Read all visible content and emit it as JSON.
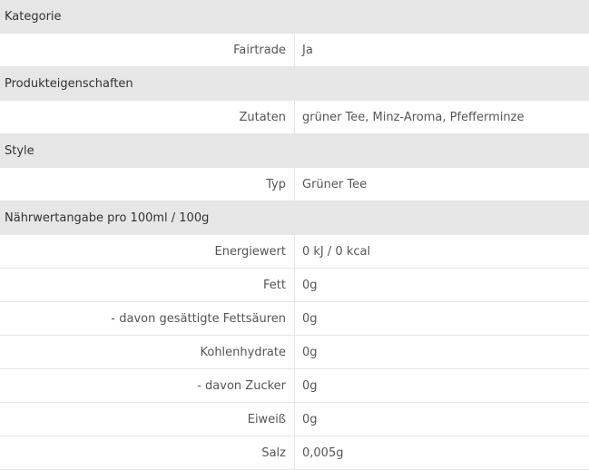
{
  "groups": [
    {
      "title": "Kategorie",
      "rows": [
        {
          "label": "Fairtrade",
          "value": "Ja"
        }
      ]
    },
    {
      "title": "Produkteigenschaften",
      "rows": [
        {
          "label": "Zutaten",
          "value": "grüner Tee, Minz-Aroma, Pfefferminze"
        }
      ]
    },
    {
      "title": "Style",
      "rows": [
        {
          "label": "Typ",
          "value": "Grüner Tee"
        }
      ]
    },
    {
      "title": "Nährwertangabe pro 100ml / 100g",
      "rows": [
        {
          "label": "Energiewert",
          "value": "0 kJ / 0 kcal"
        },
        {
          "label": "Fett",
          "value": "0g"
        },
        {
          "label": "- davon gesättigte Fettsäuren",
          "value": "0g"
        },
        {
          "label": "Kohlenhydrate",
          "value": "0g"
        },
        {
          "label": "- davon Zucker",
          "value": "0g"
        },
        {
          "label": "Eiweiß",
          "value": "0g"
        },
        {
          "label": "Salz",
          "value": "0,005g"
        }
      ]
    }
  ]
}
